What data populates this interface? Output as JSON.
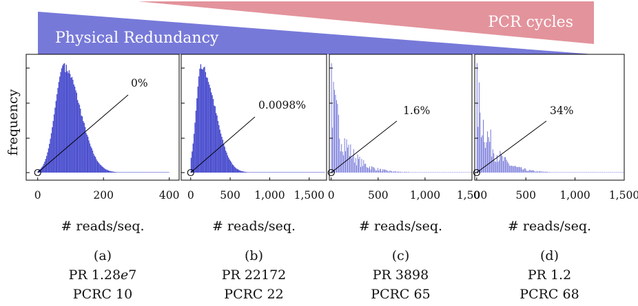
{
  "banner": {
    "pcr_label": "PCR cycles",
    "pcr_color": "#e3939c",
    "pr_label": "Physical Redundancy",
    "pr_color": "#7779d9"
  },
  "ylabel": "frequency",
  "bar_color": "#4b4fce",
  "chart_data": [
    {
      "type": "bar",
      "xlabel": "# reads/seq.",
      "xlim": [
        -35,
        430
      ],
      "xticks": [
        0,
        200,
        400
      ],
      "xtick_labels": [
        "0",
        "200",
        "400"
      ],
      "annotation": "0%",
      "subfigure": "(a)",
      "pr": "PR 1.28e7",
      "pcrc": "PCRC 10",
      "distribution": {
        "shape": "bell",
        "peak_x": 80,
        "spread_left": 28,
        "spread_right": 48,
        "support": [
          0,
          400
        ]
      }
    },
    {
      "type": "bar",
      "xlabel": "# reads/seq.",
      "xlim": [
        -120,
        1720
      ],
      "xticks": [
        0,
        500,
        1000,
        1500
      ],
      "xtick_labels": [
        "0",
        "500",
        "1,000",
        "1,500"
      ],
      "annotation": "0.0098%",
      "subfigure": "(b)",
      "pr": "PR 22172",
      "pcrc": "PCRC 22",
      "distribution": {
        "shape": "bell",
        "peak_x": 130,
        "spread_left": 65,
        "spread_right": 175,
        "support": [
          0,
          1700
        ]
      }
    },
    {
      "type": "bar",
      "xlabel": "# reads/seq.",
      "xlim": [
        -20,
        1500
      ],
      "xticks": [
        0,
        500,
        1000,
        1500
      ],
      "xtick_labels": [
        "0",
        "500",
        "1,000",
        "1,500"
      ],
      "annotation": "1.6%",
      "subfigure": "(c)",
      "pr": "PR 3898",
      "pcrc": "PCRC 65",
      "distribution": {
        "shape": "decay",
        "peak_x": 0,
        "decay": 160,
        "support": [
          0,
          1500
        ]
      }
    },
    {
      "type": "bar",
      "xlabel": "# reads/seq.",
      "xlim": [
        -20,
        1500
      ],
      "xticks": [
        0,
        500,
        1000,
        1500
      ],
      "xtick_labels": [
        "0",
        "500",
        "1,000",
        "1,500"
      ],
      "annotation": "34%",
      "subfigure": "(d)",
      "pr": "PR 1.2",
      "pcrc": "PCRC 68",
      "distribution": {
        "shape": "decay",
        "peak_x": 0,
        "decay": 150,
        "support": [
          0,
          1500
        ]
      }
    }
  ]
}
